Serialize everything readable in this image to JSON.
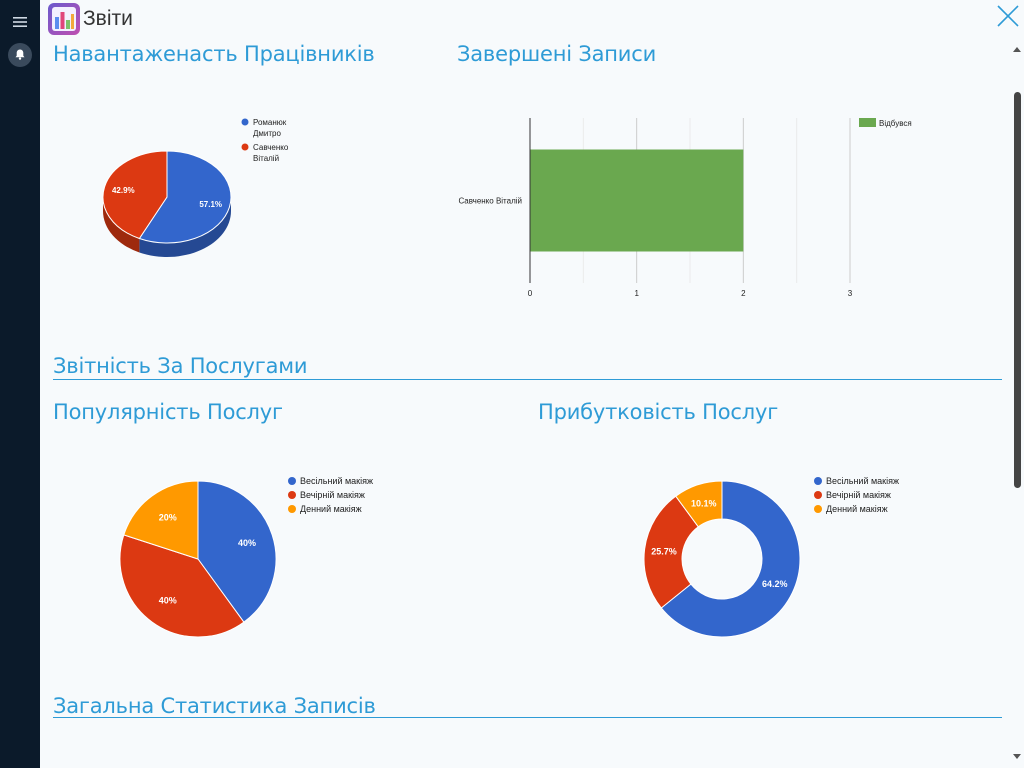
{
  "app": {
    "title": "Звіти"
  },
  "headings": {
    "workload": "Навантаженасть Працівників",
    "completed": "Завершені Записи",
    "services_section": "Звітність За Послугами",
    "popularity": "Популярність Послуг",
    "profitability": "Прибутковість Послуг",
    "general_section": "Загальна Статистика Записів"
  },
  "colors": {
    "blue": "#3366cc",
    "red": "#dc3912",
    "orange": "#ff9900",
    "green": "#6aa84f",
    "accent": "#2e9bd6"
  },
  "icons": {
    "menu": "menu-icon",
    "bell": "bell-icon",
    "close": "close-icon",
    "app": "reports-chart-icon"
  },
  "chart_data": [
    {
      "type": "pie",
      "id": "workload",
      "style": "3d",
      "legend_position": "right",
      "series": [
        {
          "name": "Романюк Дмитро",
          "label_lines": [
            "Романюк",
            "Дмитро"
          ],
          "value": 57.1,
          "label": "57.1%",
          "color": "#3366cc"
        },
        {
          "name": "Савченко Віталій",
          "label_lines": [
            "Савченко",
            "Віталій"
          ],
          "value": 42.9,
          "label": "42.9%",
          "color": "#dc3912"
        }
      ]
    },
    {
      "type": "bar",
      "id": "completed",
      "orientation": "horizontal",
      "categories": [
        "Савченко Віталій"
      ],
      "series": [
        {
          "name": "Відбувся",
          "values": [
            2
          ],
          "color": "#6aa84f"
        }
      ],
      "xlim": [
        0,
        3
      ],
      "xticks": [
        "0",
        "1",
        "2",
        "3"
      ],
      "grid": true,
      "legend_position": "right"
    },
    {
      "type": "pie",
      "id": "popularity",
      "legend_position": "right",
      "series": [
        {
          "name": "Весільний макіяж",
          "value": 40,
          "label": "40%",
          "color": "#3366cc"
        },
        {
          "name": "Вечірній макіяж",
          "value": 40,
          "label": "40%",
          "color": "#dc3912"
        },
        {
          "name": "Денний макіяж",
          "value": 20,
          "label": "20%",
          "color": "#ff9900"
        }
      ]
    },
    {
      "type": "pie",
      "id": "profitability",
      "style": "donut",
      "legend_position": "right",
      "series": [
        {
          "name": "Весільний макіяж",
          "value": 64.2,
          "label": "64.2%",
          "color": "#3366cc"
        },
        {
          "name": "Вечірній макіяж",
          "value": 25.7,
          "label": "25.7%",
          "color": "#dc3912"
        },
        {
          "name": "Денний макіяж",
          "value": 10.1,
          "label": "10.1%",
          "color": "#ff9900"
        }
      ]
    }
  ]
}
